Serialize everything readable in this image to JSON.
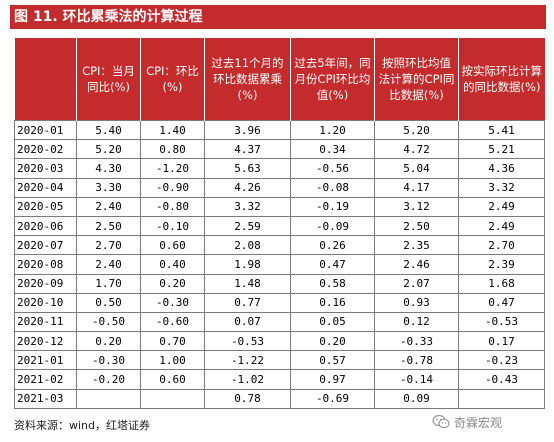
{
  "title": "图 11. 环比累乘法的计算过程",
  "headers": [
    "",
    "CPI：当月同比(%)",
    "CPI：环比(%)",
    "过去11个月的环比数据累乘(%)",
    "过去5年间，同月份CPI环比均值(%)",
    "按照环比均值法计算的CPI同比数据(%)",
    "按实际环比计算的同比数据(%)"
  ],
  "rows": [
    [
      "2020-01",
      "5.40",
      "1.40",
      "3.96",
      "1.20",
      "5.20",
      "5.41"
    ],
    [
      "2020-02",
      "5.20",
      "0.80",
      "4.37",
      "0.34",
      "4.72",
      "5.21"
    ],
    [
      "2020-03",
      "4.30",
      "-1.20",
      "5.63",
      "-0.56",
      "5.04",
      "4.36"
    ],
    [
      "2020-04",
      "3.30",
      "-0.90",
      "4.26",
      "-0.08",
      "4.17",
      "3.32"
    ],
    [
      "2020-05",
      "2.40",
      "-0.80",
      "3.32",
      "-0.19",
      "3.12",
      "2.49"
    ],
    [
      "2020-06",
      "2.50",
      "-0.10",
      "2.59",
      "-0.09",
      "2.50",
      "2.49"
    ],
    [
      "2020-07",
      "2.70",
      "0.60",
      "2.08",
      "0.26",
      "2.35",
      "2.70"
    ],
    [
      "2020-08",
      "2.40",
      "0.40",
      "1.98",
      "0.47",
      "2.46",
      "2.39"
    ],
    [
      "2020-09",
      "1.70",
      "0.20",
      "1.48",
      "0.58",
      "2.07",
      "1.68"
    ],
    [
      "2020-10",
      "0.50",
      "-0.30",
      "0.77",
      "0.16",
      "0.93",
      "0.47"
    ],
    [
      "2020-11",
      "-0.50",
      "-0.60",
      "0.07",
      "0.05",
      "0.12",
      "-0.53"
    ],
    [
      "2020-12",
      "0.20",
      "0.70",
      "-0.53",
      "0.20",
      "-0.33",
      "0.17"
    ],
    [
      "2021-01",
      "-0.30",
      "1.00",
      "-1.22",
      "0.57",
      "-0.78",
      "-0.23"
    ],
    [
      "2021-02",
      "-0.20",
      "0.60",
      "-1.02",
      "0.97",
      "-0.14",
      "-0.43"
    ],
    [
      "2021-03",
      "",
      "",
      "0.78",
      "-0.69",
      "0.09",
      ""
    ]
  ],
  "source": "资料来源：wind，红塔证券",
  "watermark": "奇霖宏观",
  "watermark_icon": "wechat-icon",
  "colors": {
    "header_bg": "#c42b2c",
    "header_text": "#ffffff",
    "grid": "#7a7a7a"
  }
}
